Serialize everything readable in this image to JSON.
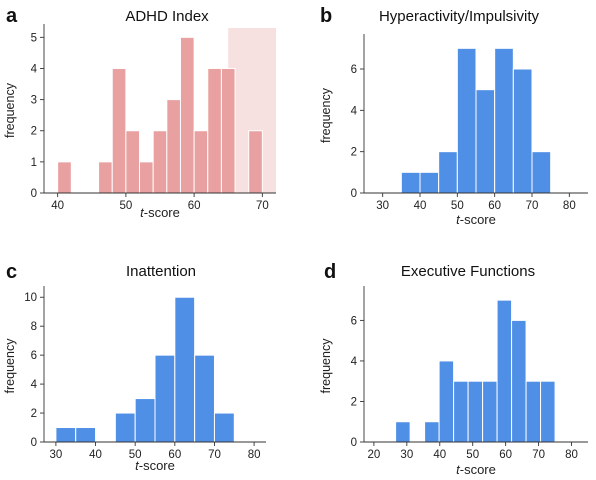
{
  "chart_data": [
    {
      "type": "bar",
      "panel": "a",
      "title": "ADHD Index",
      "ylabel": "frequency",
      "xlabel_italic": "t",
      "xlabel_rest": "-score",
      "xticks": [
        "40",
        "50",
        "60",
        "70"
      ],
      "yticks": [
        "0",
        "1",
        "2",
        "3",
        "4",
        "5"
      ],
      "xlim": [
        38,
        72
      ],
      "ylim": [
        0,
        5.3
      ],
      "bin_width": 2,
      "bins": [
        {
          "x": 41,
          "value": 1
        },
        {
          "x": 47,
          "value": 1
        },
        {
          "x": 49,
          "value": 4
        },
        {
          "x": 51,
          "value": 2
        },
        {
          "x": 53,
          "value": 1
        },
        {
          "x": 55,
          "value": 2
        },
        {
          "x": 57,
          "value": 3
        },
        {
          "x": 59,
          "value": 5
        },
        {
          "x": 61,
          "value": 2
        },
        {
          "x": 63,
          "value": 4
        },
        {
          "x": 65,
          "value": 4
        },
        {
          "x": 69,
          "value": 2
        }
      ],
      "shaded_region": [
        65,
        72
      ],
      "color": "#e8a0a0",
      "shade_color": "#f7e0e0"
    },
    {
      "type": "bar",
      "panel": "b",
      "title": "Hyperactivity/Impulsivity",
      "ylabel": "frequency",
      "xlabel_italic": "t",
      "xlabel_rest": "-score",
      "xticks": [
        "30",
        "40",
        "50",
        "60",
        "70",
        "80"
      ],
      "yticks": [
        "0",
        "2",
        "4",
        "6"
      ],
      "xlim": [
        25,
        85
      ],
      "ylim": [
        0,
        7.5
      ],
      "bin_width": 5,
      "bins": [
        {
          "x": 37.5,
          "value": 1
        },
        {
          "x": 42.5,
          "value": 1
        },
        {
          "x": 47.5,
          "value": 2
        },
        {
          "x": 52.5,
          "value": 7
        },
        {
          "x": 57.5,
          "value": 5
        },
        {
          "x": 62.5,
          "value": 7
        },
        {
          "x": 67.5,
          "value": 6
        },
        {
          "x": 72.5,
          "value": 2
        }
      ],
      "color": "#4f8fe6"
    },
    {
      "type": "bar",
      "panel": "c",
      "title": "Inattention",
      "ylabel": "frequency",
      "xlabel_italic": "t",
      "xlabel_rest": "-score",
      "xticks": [
        "30",
        "40",
        "50",
        "60",
        "70",
        "80"
      ],
      "yticks": [
        "0",
        "2",
        "4",
        "6",
        "8",
        "10"
      ],
      "xlim": [
        27,
        83
      ],
      "ylim": [
        0,
        10.5
      ],
      "bin_width": 5,
      "bins": [
        {
          "x": 32.5,
          "value": 1
        },
        {
          "x": 37.5,
          "value": 1
        },
        {
          "x": 47.5,
          "value": 2
        },
        {
          "x": 52.5,
          "value": 3
        },
        {
          "x": 57.5,
          "value": 6
        },
        {
          "x": 62.5,
          "value": 10
        },
        {
          "x": 67.5,
          "value": 6
        },
        {
          "x": 72.5,
          "value": 2
        }
      ],
      "color": "#4f8fe6"
    },
    {
      "type": "bar",
      "panel": "d",
      "title": "Executive Functions",
      "ylabel": "frequency",
      "xlabel_italic": "t",
      "xlabel_rest": "-score",
      "xticks": [
        "20",
        "30",
        "40",
        "50",
        "60",
        "70",
        "80"
      ],
      "yticks": [
        "0",
        "2",
        "4",
        "6"
      ],
      "xlim": [
        17,
        85
      ],
      "ylim": [
        0,
        7.5
      ],
      "bin_width": 4.4,
      "bins": [
        {
          "x": 28.8,
          "value": 1
        },
        {
          "x": 37.6,
          "value": 1
        },
        {
          "x": 42.0,
          "value": 4
        },
        {
          "x": 46.4,
          "value": 3
        },
        {
          "x": 50.8,
          "value": 3
        },
        {
          "x": 55.2,
          "value": 3
        },
        {
          "x": 59.6,
          "value": 7
        },
        {
          "x": 64.0,
          "value": 6
        },
        {
          "x": 68.4,
          "value": 3
        },
        {
          "x": 72.8,
          "value": 3
        }
      ],
      "color": "#4f8fe6"
    }
  ]
}
